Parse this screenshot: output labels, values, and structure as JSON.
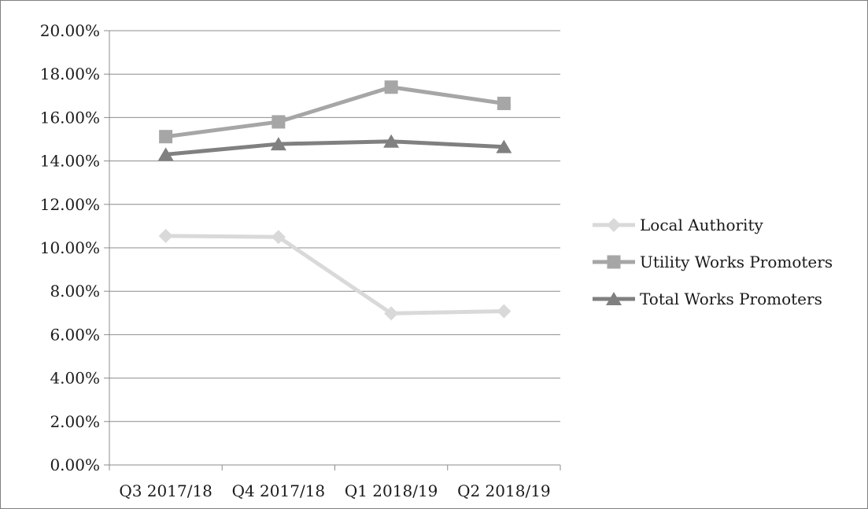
{
  "chart_data": {
    "type": "line",
    "title": "",
    "xlabel": "",
    "ylabel": "",
    "categories": [
      "Q3 2017/18",
      "Q4 2017/18",
      "Q1 2018/19",
      "Q2 2018/19"
    ],
    "ylim": [
      0,
      0.2
    ],
    "y_ticks": [
      0,
      0.02,
      0.04,
      0.06,
      0.08,
      0.1,
      0.12,
      0.14,
      0.16,
      0.18,
      0.2
    ],
    "y_tick_labels": [
      "0.00%",
      "2.00%",
      "4.00%",
      "6.00%",
      "8.00%",
      "10.00%",
      "12.00%",
      "14.00%",
      "16.00%",
      "18.00%",
      "20.00%"
    ],
    "grid": true,
    "legend_position": "right",
    "series": [
      {
        "name": "Local Authority",
        "values": [
          0.1055,
          0.105,
          0.0698,
          0.0708
        ],
        "marker": "diamond",
        "color": "#d9d9d9"
      },
      {
        "name": "Utility Works Promoters",
        "values": [
          0.1512,
          0.158,
          0.174,
          0.1665
        ],
        "marker": "square",
        "color": "#a6a6a6"
      },
      {
        "name": "Total Works Promoters",
        "values": [
          0.143,
          0.1478,
          0.149,
          0.1465
        ],
        "marker": "triangle",
        "color": "#808080"
      }
    ]
  }
}
